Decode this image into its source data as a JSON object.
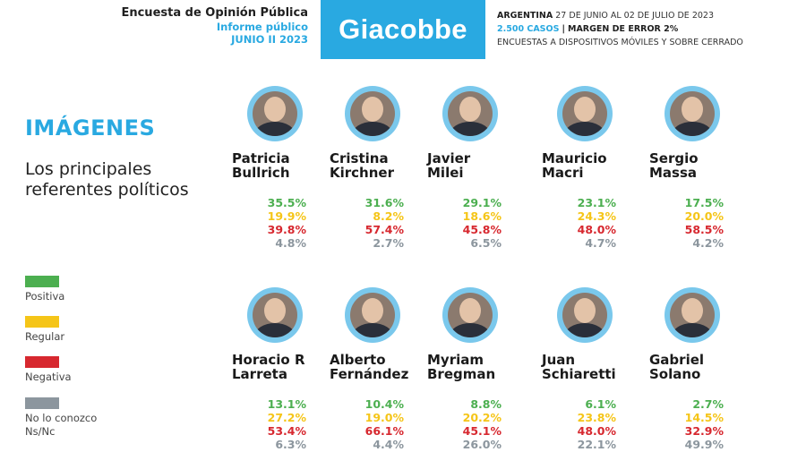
{
  "header": {
    "title": "Encuesta de Opinión Pública",
    "report": "Informe público",
    "period": "JUNIO II 2023",
    "brand": "Giacobbe",
    "country": "ARGENTINA",
    "dates": "27 DE JUNIO AL 02 DE JULIO DE 2023",
    "cases": "2.500 CASOS",
    "separator": "|",
    "margin": "MARGEN DE ERROR 2%",
    "method": "ENCUESTAS A DISPOSITIVOS MÓVILES Y SOBRE CERRADO"
  },
  "section": {
    "title": "IMÁGENES",
    "subtitle": "Los principales referentes políticos"
  },
  "legend": [
    {
      "label": "Positiva",
      "color": "#4caf50"
    },
    {
      "label": "Regular",
      "color": "#f5c518"
    },
    {
      "label": "Negativa",
      "color": "#d7282f"
    },
    {
      "label": "No lo conozco Ns/Nc",
      "color": "#8c969e"
    }
  ],
  "colors": {
    "accent": "#29a9e1",
    "positiva": "#4caf50",
    "regular": "#f5c518",
    "negativa": "#d7282f",
    "nsnc": "#8c969e"
  },
  "chart_data": {
    "type": "table",
    "title": "IMÁGENES",
    "columns": [
      "Positiva",
      "Regular",
      "Negativa",
      "No lo conozco Ns/Nc"
    ],
    "people": [
      {
        "name": "Patricia Bullrich",
        "values": [
          "35.5%",
          "19.9%",
          "39.8%",
          "4.8%"
        ]
      },
      {
        "name": "Cristina Kirchner",
        "values": [
          "31.6%",
          "8.2%",
          "57.4%",
          "2.7%"
        ]
      },
      {
        "name": "Javier Milei",
        "values": [
          "29.1%",
          "18.6%",
          "45.8%",
          "6.5%"
        ]
      },
      {
        "name": "Mauricio Macri",
        "values": [
          "23.1%",
          "24.3%",
          "48.0%",
          "4.7%"
        ]
      },
      {
        "name": "Sergio Massa",
        "values": [
          "17.5%",
          "20.0%",
          "58.5%",
          "4.2%"
        ]
      },
      {
        "name": "Horacio R Larreta",
        "values": [
          "13.1%",
          "27.2%",
          "53.4%",
          "6.3%"
        ]
      },
      {
        "name": "Alberto Fernández",
        "values": [
          "10.4%",
          "19.0%",
          "66.1%",
          "4.4%"
        ]
      },
      {
        "name": "Myriam Bregman",
        "values": [
          "8.8%",
          "20.2%",
          "45.1%",
          "26.0%"
        ]
      },
      {
        "name": "Juan Schiaretti",
        "values": [
          "6.1%",
          "23.8%",
          "48.0%",
          "22.1%"
        ]
      },
      {
        "name": "Gabriel Solano",
        "values": [
          "2.7%",
          "14.5%",
          "32.9%",
          "49.9%"
        ]
      }
    ]
  }
}
